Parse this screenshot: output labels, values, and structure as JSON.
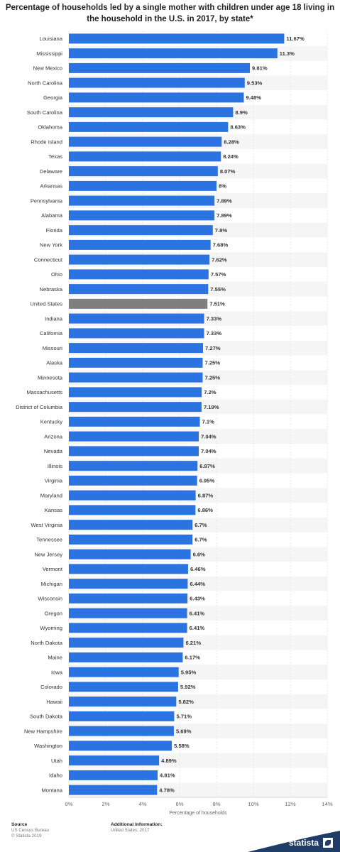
{
  "title": "Percentage of households led by a single mother with children under age 18 living in the household in the U.S. in 2017, by state*",
  "colors": {
    "bar": "#2a73e0",
    "highlight": "#7f7f7f",
    "stripe": "#f5f5f5",
    "grid": "#dddddd",
    "brand": "#1f3d66"
  },
  "chart_data": {
    "type": "bar",
    "orientation": "horizontal",
    "categories": [
      "Louisiana",
      "Mississippi",
      "New Mexico",
      "North Carolina",
      "Georgia",
      "South Carolina",
      "Oklahoma",
      "Rhode Island",
      "Texas",
      "Delaware",
      "Arkansas",
      "Pennsylvania",
      "Alabama",
      "Florida",
      "New York",
      "Connecticut",
      "Ohio",
      "Nebraska",
      "United States",
      "Indiana",
      "California",
      "Missouri",
      "Alaska",
      "Minnesota",
      "Massachusetts",
      "District of Columbia",
      "Kentucky",
      "Arizona",
      "Nevada",
      "Illinois",
      "Virginia",
      "Maryland",
      "Kansas",
      "West Virginia",
      "Tennessee",
      "New Jersey",
      "Vermont",
      "Michigan",
      "Wisconsin",
      "Oregon",
      "Wyoming",
      "North Dakota",
      "Maine",
      "Iowa",
      "Colorado",
      "Hawaii",
      "South Dakota",
      "New Hampshire",
      "Washington",
      "Utah",
      "Idaho",
      "Montana"
    ],
    "values": [
      11.67,
      11.3,
      9.81,
      9.53,
      9.48,
      8.9,
      8.63,
      8.28,
      8.24,
      8.07,
      8,
      7.89,
      7.89,
      7.8,
      7.68,
      7.62,
      7.57,
      7.55,
      7.51,
      7.33,
      7.33,
      7.27,
      7.25,
      7.25,
      7.2,
      7.19,
      7.1,
      7.04,
      7.04,
      6.97,
      6.95,
      6.87,
      6.86,
      6.7,
      6.7,
      6.6,
      6.46,
      6.44,
      6.43,
      6.41,
      6.41,
      6.21,
      6.17,
      5.95,
      5.92,
      5.82,
      5.71,
      5.69,
      5.58,
      4.89,
      4.81,
      4.78
    ],
    "value_labels": [
      "11.67%",
      "11.3%",
      "9.81%",
      "9.53%",
      "9.48%",
      "8.9%",
      "8.63%",
      "8.28%",
      "8.24%",
      "8.07%",
      "8%",
      "7.89%",
      "7.89%",
      "7.8%",
      "7.68%",
      "7.62%",
      "7.57%",
      "7.55%",
      "7.51%",
      "7.33%",
      "7.33%",
      "7.27%",
      "7.25%",
      "7.25%",
      "7.2%",
      "7.19%",
      "7.1%",
      "7.04%",
      "7.04%",
      "6.97%",
      "6.95%",
      "6.87%",
      "6.86%",
      "6.7%",
      "6.7%",
      "6.6%",
      "6.46%",
      "6.44%",
      "6.43%",
      "6.41%",
      "6.41%",
      "6.21%",
      "6.17%",
      "5.95%",
      "5.92%",
      "5.82%",
      "5.71%",
      "5.69%",
      "5.58%",
      "4.89%",
      "4.81%",
      "4.78%"
    ],
    "highlight_category": "United States",
    "xlim": [
      0,
      14
    ],
    "xticks": [
      0,
      2,
      4,
      6,
      8,
      10,
      12,
      14
    ],
    "xtick_labels": [
      "0%",
      "2%",
      "4%",
      "6%",
      "8%",
      "10%",
      "12%",
      "14%"
    ],
    "xlabel": "Percentage of households",
    "ylabel": "",
    "grid": true
  },
  "footer": {
    "source_heading": "Source",
    "source_lines": [
      "US Census Bureau",
      "© Statista 2019"
    ],
    "info_heading": "Additional Information:",
    "info_lines": [
      "United States; 2017"
    ]
  },
  "brand": {
    "name": "statista",
    "icon": "statista-logo-icon"
  }
}
